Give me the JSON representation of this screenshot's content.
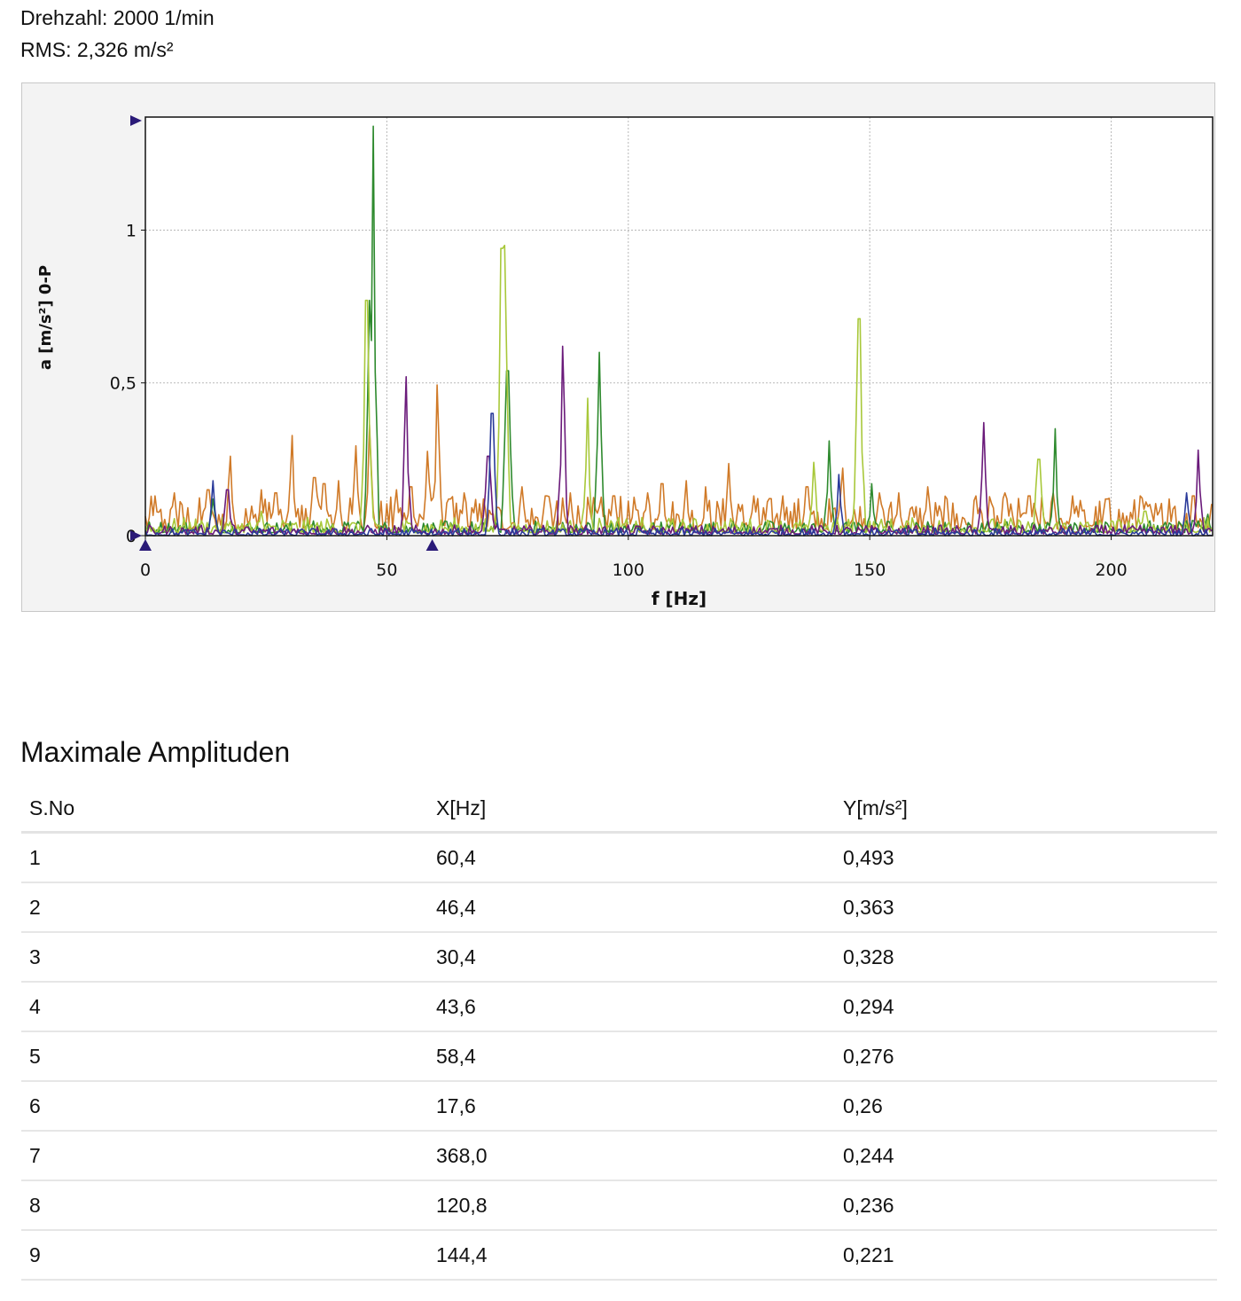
{
  "header": {
    "rpm": "Drehzahl: 2000 1/min",
    "rms": "RMS: 2,326 m/s²"
  },
  "colors": {
    "orange": "#d07a28",
    "dark_green": "#2e8a2e",
    "light_green": "#a8c83a",
    "purple": "#6a1a7a",
    "blue": "#2a3a9a",
    "grid": "#b8b8b8",
    "marker": "#2a1a78"
  },
  "chart_data": {
    "type": "line",
    "title": "",
    "xlabel": "f [Hz]",
    "ylabel": "a [m/s²] 0-P",
    "xlim": [
      0,
      221
    ],
    "ylim": [
      0,
      1.37
    ],
    "x_ticks": [
      0,
      50,
      100,
      150,
      200
    ],
    "x_tick_labels": [
      "0",
      "50",
      "100",
      "150",
      "200"
    ],
    "y_ticks": [
      0,
      0.5,
      1
    ],
    "y_tick_labels": [
      "0",
      "0,5",
      "1"
    ],
    "grid": true,
    "legend": "none",
    "cursor_markers_x": [
      0,
      59.4
    ],
    "series": [
      {
        "color": "orange",
        "noise": [
          0.02,
          0.13
        ],
        "peaks": [
          [
            2,
            0.13
          ],
          [
            6,
            0.14
          ],
          [
            13,
            0.15
          ],
          [
            17.6,
            0.26
          ],
          [
            24,
            0.15
          ],
          [
            27,
            0.14
          ],
          [
            30.4,
            0.328
          ],
          [
            35,
            0.19
          ],
          [
            37,
            0.17
          ],
          [
            40,
            0.18
          ],
          [
            43.6,
            0.294
          ],
          [
            46.4,
            0.363
          ],
          [
            52,
            0.15
          ],
          [
            55,
            0.16
          ],
          [
            58.4,
            0.276
          ],
          [
            60.4,
            0.493
          ],
          [
            63,
            0.12
          ],
          [
            66,
            0.14
          ],
          [
            70,
            0.12
          ],
          [
            78,
            0.16
          ],
          [
            83,
            0.13
          ],
          [
            88,
            0.14
          ],
          [
            97,
            0.13
          ],
          [
            104,
            0.14
          ],
          [
            107,
            0.17
          ],
          [
            112,
            0.18
          ],
          [
            116,
            0.16
          ],
          [
            120.8,
            0.236
          ],
          [
            126,
            0.13
          ],
          [
            132,
            0.13
          ],
          [
            137,
            0.16
          ],
          [
            144.4,
            0.221
          ],
          [
            152,
            0.14
          ],
          [
            156,
            0.14
          ],
          [
            162,
            0.16
          ],
          [
            166,
            0.12
          ],
          [
            172,
            0.13
          ],
          [
            178,
            0.14
          ],
          [
            183,
            0.13
          ],
          [
            188,
            0.14
          ],
          [
            192,
            0.13
          ],
          [
            199,
            0.12
          ],
          [
            206,
            0.13
          ],
          [
            212,
            0.12
          ],
          [
            217,
            0.13
          ]
        ]
      },
      {
        "color": "dark_green",
        "noise": [
          0.01,
          0.05
        ],
        "peaks": [
          [
            14,
            0.12
          ],
          [
            46.4,
            0.77
          ],
          [
            47.2,
            1.34
          ],
          [
            75,
            0.54
          ],
          [
            94,
            0.6
          ],
          [
            141.5,
            0.31
          ],
          [
            150.5,
            0.17
          ],
          [
            188.5,
            0.35
          ],
          [
            220,
            0.07
          ]
        ]
      },
      {
        "color": "light_green",
        "noise": [
          0.01,
          0.06
        ],
        "peaks": [
          [
            24,
            0.08
          ],
          [
            45.8,
            0.77
          ],
          [
            73.8,
            0.94
          ],
          [
            74.4,
            0.95
          ],
          [
            91.5,
            0.45
          ],
          [
            138.5,
            0.24
          ],
          [
            147.8,
            0.71
          ],
          [
            185,
            0.25
          ],
          [
            207,
            0.08
          ]
        ]
      },
      {
        "color": "purple",
        "noise": [
          0.005,
          0.035
        ],
        "peaks": [
          [
            17,
            0.15
          ],
          [
            54,
            0.52
          ],
          [
            71,
            0.26
          ],
          [
            86.5,
            0.62
          ],
          [
            173.5,
            0.37
          ],
          [
            218,
            0.28
          ]
        ]
      },
      {
        "color": "blue",
        "noise": [
          0.0,
          0.025
        ],
        "peaks": [
          [
            14,
            0.18
          ],
          [
            71.8,
            0.4
          ],
          [
            143.5,
            0.2
          ],
          [
            215.5,
            0.14
          ]
        ]
      }
    ]
  },
  "table": {
    "title": "Maximale Amplituden",
    "headers": [
      "S.No",
      "X[Hz]",
      "Y[m/s²]"
    ],
    "rows": [
      [
        "1",
        "60,4",
        "0,493"
      ],
      [
        "2",
        "46,4",
        "0,363"
      ],
      [
        "3",
        "30,4",
        "0,328"
      ],
      [
        "4",
        "43,6",
        "0,294"
      ],
      [
        "5",
        "58,4",
        "0,276"
      ],
      [
        "6",
        "17,6",
        "0,26"
      ],
      [
        "7",
        "368,0",
        "0,244"
      ],
      [
        "8",
        "120,8",
        "0,236"
      ],
      [
        "9",
        "144,4",
        "0,221"
      ]
    ]
  }
}
